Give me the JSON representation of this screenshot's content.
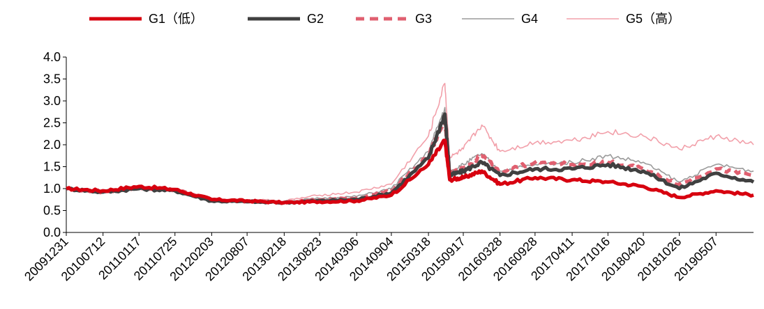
{
  "chart_data": {
    "type": "line",
    "title": "",
    "xlabel": "",
    "ylabel": "",
    "ylim": [
      0,
      4
    ],
    "y_ticks": [
      "0.0",
      "0.5",
      "1.0",
      "1.5",
      "2.0",
      "2.5",
      "3.0",
      "3.5",
      "4.0"
    ],
    "x_ticks": [
      "20091231",
      "20100712",
      "20110117",
      "20110725",
      "20120203",
      "20120807",
      "20130218",
      "20130823",
      "20140306",
      "20140904",
      "20150318",
      "20150917",
      "20160328",
      "20160928",
      "20170411",
      "20171016",
      "20180420",
      "20181026",
      "20190507"
    ],
    "legend_position": "top",
    "grid": false,
    "x": [
      "20091231",
      "20100712",
      "20110117",
      "20110725",
      "20120203",
      "20120807",
      "20130218",
      "20130823",
      "20140306",
      "20140904",
      "20150318",
      "20150612",
      "20150708",
      "20150917",
      "20151223",
      "20160328",
      "20160928",
      "20170411",
      "20171016",
      "20180420",
      "20181026",
      "20190507",
      "20191120"
    ],
    "series": [
      {
        "name": "G1（低）",
        "color": "#d7000f",
        "style": "solid-thick",
        "values": [
          1.0,
          0.95,
          1.05,
          0.98,
          0.75,
          0.72,
          0.68,
          0.7,
          0.72,
          0.85,
          1.55,
          2.1,
          1.2,
          1.25,
          1.4,
          1.1,
          1.25,
          1.2,
          1.15,
          1.05,
          0.8,
          0.95,
          0.85
        ]
      },
      {
        "name": "G2",
        "color": "#404040",
        "style": "solid-thick",
        "values": [
          1.0,
          0.92,
          1.0,
          0.95,
          0.72,
          0.7,
          0.68,
          0.72,
          0.75,
          0.9,
          1.7,
          2.7,
          1.3,
          1.4,
          1.6,
          1.3,
          1.45,
          1.45,
          1.55,
          1.4,
          1.0,
          1.35,
          1.15
        ]
      },
      {
        "name": "G3",
        "color": "#e06070",
        "style": "dashed-thick",
        "values": [
          1.0,
          0.93,
          1.02,
          0.97,
          0.74,
          0.71,
          0.69,
          0.74,
          0.78,
          0.95,
          1.75,
          2.55,
          1.35,
          1.45,
          1.75,
          1.4,
          1.6,
          1.55,
          1.6,
          1.45,
          1.1,
          1.45,
          1.3
        ]
      },
      {
        "name": "G4",
        "color": "#9a9a9a",
        "style": "solid-thin",
        "values": [
          1.0,
          0.92,
          1.0,
          0.95,
          0.73,
          0.72,
          0.7,
          0.78,
          0.82,
          1.0,
          1.85,
          2.85,
          1.4,
          1.55,
          1.8,
          1.4,
          1.55,
          1.6,
          1.75,
          1.6,
          1.15,
          1.55,
          1.4
        ]
      },
      {
        "name": "G5（高）",
        "color": "#f2a0aa",
        "style": "solid-thin",
        "values": [
          1.0,
          0.92,
          1.0,
          0.95,
          0.74,
          0.75,
          0.72,
          0.85,
          0.92,
          1.1,
          2.2,
          3.4,
          1.7,
          1.9,
          2.45,
          1.85,
          2.05,
          2.1,
          2.3,
          2.2,
          1.9,
          2.2,
          2.0
        ]
      }
    ]
  }
}
